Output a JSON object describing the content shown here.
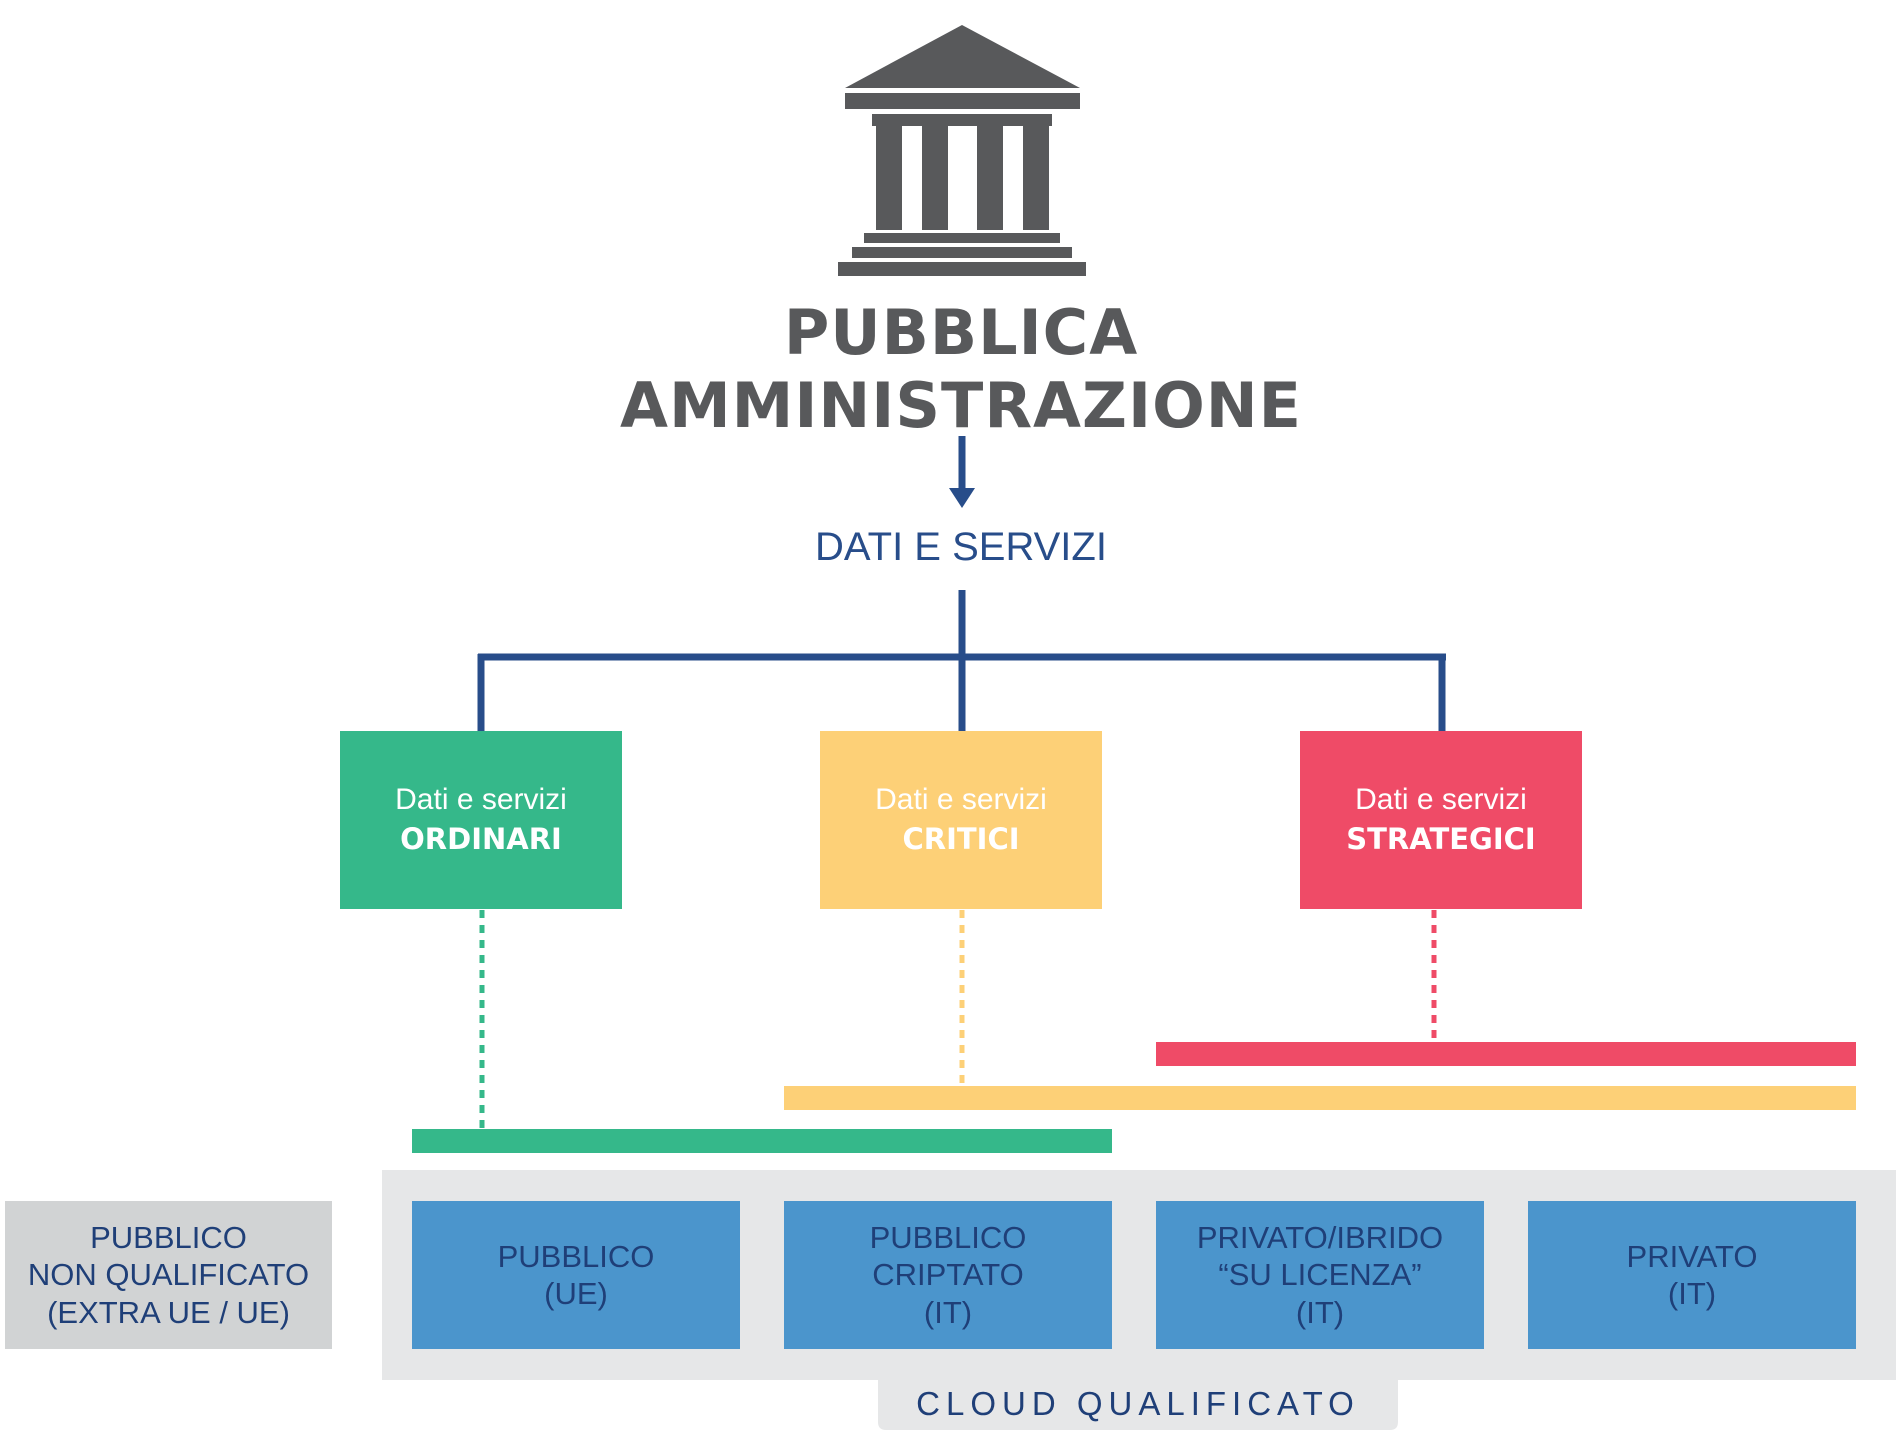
{
  "header": {
    "icon": "government-building-icon",
    "title_line_1": "PUBBLICA",
    "title_line_2": "AMMINISTRAZIONE"
  },
  "flow_label": "DATI E SERVIZI",
  "categories": [
    {
      "id": "ordinari",
      "line1": "Dati e servizi",
      "line2": "ORDINARI",
      "color": "#35b88a"
    },
    {
      "id": "critici",
      "line1": "Dati e servizi",
      "line2": "CRITICI",
      "color": "#fdd077"
    },
    {
      "id": "strategici",
      "line1": "Dati e servizi",
      "line2": "STRATEGICI",
      "color": "#ef4b67"
    }
  ],
  "cloud_options": [
    {
      "id": "pubblico-nq",
      "lines": [
        "PUBBLICO",
        "NON QUALIFICATO",
        "(EXTRA UE / UE)"
      ],
      "color": "#d1d3d4",
      "qualified": false
    },
    {
      "id": "pubblico-ue",
      "lines": [
        "PUBBLICO",
        "(UE)"
      ],
      "color": "#4b95cc",
      "qualified": true
    },
    {
      "id": "pubblico-criptato",
      "lines": [
        "PUBBLICO",
        "CRIPTATO",
        "(IT)"
      ],
      "color": "#4b95cc",
      "qualified": true
    },
    {
      "id": "privato-ibrido",
      "lines": [
        "PRIVATO/IBRIDO",
        "“SU LICENZA”",
        "(IT)"
      ],
      "color": "#4b95cc",
      "qualified": true
    },
    {
      "id": "privato-it",
      "lines": [
        "PRIVATO",
        "(IT)"
      ],
      "color": "#4b95cc",
      "qualified": true
    }
  ],
  "cloud_group_label": "CLOUD QUALIFICATO",
  "colors": {
    "connector": "#284d8a",
    "icon": "#58595b",
    "qualified_panel": "#e6e7e8"
  }
}
